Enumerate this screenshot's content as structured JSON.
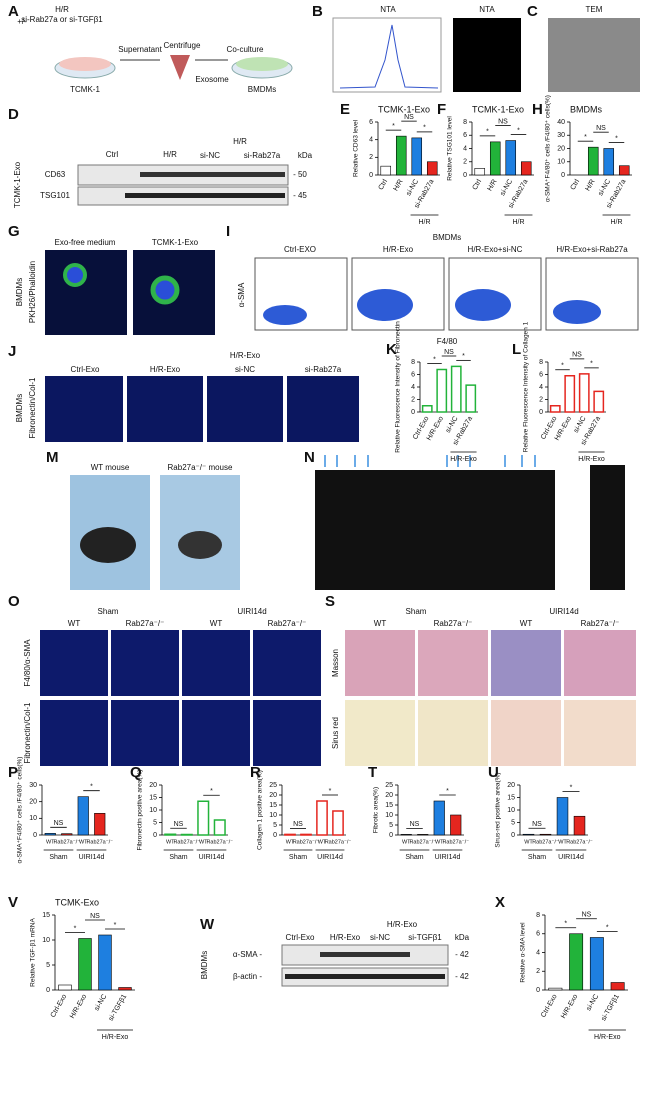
{
  "panels": {
    "A": {
      "letter": "A",
      "texts": [
        "+/-",
        "H/R",
        "si-Rab27a or si-TGFβ1",
        "Supernatant",
        "Centrifuge",
        "Co-culture",
        "Exosome",
        "TCMK-1",
        "BMDMs"
      ]
    },
    "B": {
      "letter": "B",
      "texts": [
        "NTA",
        "NTA"
      ]
    },
    "C": {
      "letter": "C",
      "texts": [
        "TEM"
      ]
    },
    "D": {
      "letter": "D",
      "texts": [
        "Ctrl",
        "H/R",
        "H/R",
        "si-NC",
        "si-Rab27a",
        "kDa",
        "CD63",
        "TSG101",
        "- 50",
        "- 45",
        "TCMK-1-Exo"
      ]
    },
    "G": {
      "letter": "G",
      "texts": [
        "Exo-free medium",
        "TCMK-1-Exo",
        "BMDMs",
        "PKH26/Phalloidin"
      ]
    },
    "I": {
      "letter": "I",
      "texts": [
        "BMDMs",
        "Ctrl-EXO",
        "H/R-Exo",
        "H/R-Exo+si-NC",
        "H/R-Exo+si-Rab27a",
        "α-SMA",
        "F4/80"
      ]
    },
    "J": {
      "letter": "J",
      "texts": [
        "Ctrl-Exo",
        "H/R-Exo",
        "H/R-Exo",
        "si-NC",
        "si-Rab27a",
        "BMDMs",
        "Fibronectin/Col-1"
      ]
    },
    "M": {
      "letter": "M",
      "texts": [
        "WT mouse",
        "Rab27a⁻/⁻ mouse"
      ]
    },
    "N": {
      "letter": "N"
    },
    "O": {
      "letter": "O",
      "texts": [
        "Sham",
        "UIRI14d",
        "WT",
        "Rab27a⁻/⁻",
        "WT",
        "Rab27a⁻/⁻",
        "F4/80/α-SMA",
        "Fibronectin/Col-1"
      ]
    },
    "S": {
      "letter": "S",
      "texts": [
        "Sham",
        "UIRI14d",
        "WT",
        "Rab27a⁻/⁻",
        "WT",
        "Rab27a⁻/⁻",
        "Masson",
        "Sirus red"
      ]
    },
    "W": {
      "letter": "W",
      "texts": [
        "Ctrl-Exo",
        "H/R-Exo",
        "H/R-Exo",
        "si-NC",
        "si-TGFβ1",
        "kDa",
        "α-SMA -",
        "β-actin -",
        "- 42",
        "- 42",
        "BMDMs"
      ]
    }
  },
  "chart_data": [
    {
      "type": "bar",
      "panel": "E",
      "title": "TCMK-1-Exo",
      "y_label": "Relative CD63 level",
      "categories": [
        "Ctrl",
        "H/R",
        "si-NC",
        "si-Rab27a"
      ],
      "values": [
        1,
        4.4,
        4.2,
        1.5
      ],
      "colors": [
        "#ffffff",
        "#22b33a",
        "#1e7fe0",
        "#e5261f"
      ],
      "fill": "solid",
      "ylim": [
        0,
        6
      ],
      "yticks": [
        0,
        2,
        4,
        6
      ],
      "group_labels": [
        "H/R"
      ],
      "annotations": [
        "*",
        "NS",
        "*"
      ]
    },
    {
      "type": "bar",
      "panel": "F",
      "title": "TCMK-1-Exo",
      "y_label": "Relative TSG101 level",
      "categories": [
        "Ctrl",
        "H/R",
        "si-NC",
        "si-Rab27a"
      ],
      "values": [
        1,
        5,
        5.2,
        2
      ],
      "colors": [
        "#ffffff",
        "#22b33a",
        "#1e7fe0",
        "#e5261f"
      ],
      "fill": "solid",
      "ylim": [
        0,
        8
      ],
      "yticks": [
        0,
        2,
        4,
        6,
        8
      ],
      "group_labels": [
        "H/R"
      ],
      "annotations": [
        "*",
        "NS",
        "*"
      ]
    },
    {
      "type": "bar",
      "panel": "H",
      "title": "BMDMs",
      "y_label": "α-SMA⁺F4/80⁺ cells /F4/80⁺ cells(%)",
      "categories": [
        "Ctrl",
        "H/R",
        "si-NC",
        "si-Rab27a"
      ],
      "values": [
        0,
        21,
        20,
        7
      ],
      "colors": [
        "#ffffff",
        "#22b33a",
        "#1e7fe0",
        "#e5261f"
      ],
      "fill": "solid",
      "ylim": [
        0,
        40
      ],
      "yticks": [
        0,
        10,
        20,
        30,
        40
      ],
      "group_labels": [
        "H/R"
      ],
      "annotations": [
        "*",
        "NS",
        "*"
      ]
    },
    {
      "type": "bar",
      "panel": "K",
      "y_label": "Relative Fluorescence Intensity of Fibronectin",
      "categories": [
        "Ctrl-Exo",
        "H/R-Exo",
        "si-NC",
        "si-Rab27a"
      ],
      "values": [
        1,
        6.8,
        7.3,
        4.3
      ],
      "colors": [
        "#22b33a",
        "#22b33a",
        "#22b33a",
        "#22b33a"
      ],
      "fill": "outline",
      "ylim": [
        0,
        8
      ],
      "yticks": [
        0,
        2,
        4,
        6,
        8
      ],
      "group_labels": [
        "H/R-Exo"
      ],
      "annotations": [
        "*",
        "NS",
        "*"
      ]
    },
    {
      "type": "bar",
      "panel": "L",
      "y_label": "Relative Fluorescence Intensity of Collagen 1",
      "categories": [
        "Ctrl-Exo",
        "H/R-Exo",
        "si-NC",
        "si-Rab27a"
      ],
      "values": [
        1,
        5.8,
        6.1,
        3.3
      ],
      "colors": [
        "#e5261f",
        "#e5261f",
        "#e5261f",
        "#e5261f"
      ],
      "fill": "outline",
      "ylim": [
        0,
        8
      ],
      "yticks": [
        0,
        2,
        4,
        6,
        8
      ],
      "group_labels": [
        "H/R-Exo"
      ],
      "annotations": [
        "*",
        "NS",
        "*"
      ]
    },
    {
      "type": "bar",
      "panel": "P",
      "y_label": "α-SMA⁺F4/80⁺ cells /F4/80⁺ cells(%)",
      "categories": [
        "WT",
        "Rab27a⁻/⁻",
        "WT",
        "Rab27a⁻/⁻"
      ],
      "values": [
        1,
        0.8,
        23,
        13
      ],
      "colors": [
        "#1e7fe0",
        "#e5261f",
        "#1e7fe0",
        "#e5261f"
      ],
      "fill": "solid",
      "ylim": [
        0,
        30
      ],
      "yticks": [
        0,
        10,
        20,
        30
      ],
      "group_labels": [
        "Sham",
        "UIRI14d"
      ],
      "annotations": [
        "NS",
        "*"
      ]
    },
    {
      "type": "bar",
      "panel": "Q",
      "y_label": "Fibronectin positive area(%)",
      "categories": [
        "WT",
        "Rab27a⁻/⁻",
        "WT",
        "Rab27a⁻/⁻"
      ],
      "values": [
        0.3,
        0.2,
        13.5,
        6
      ],
      "colors": [
        "#22b33a",
        "#22b33a",
        "#22b33a",
        "#22b33a"
      ],
      "fill": "outline",
      "ylim": [
        0,
        20
      ],
      "yticks": [
        0,
        5,
        10,
        15,
        20
      ],
      "group_labels": [
        "Sham",
        "UIRI14d"
      ],
      "annotations": [
        "NS",
        "*"
      ]
    },
    {
      "type": "bar",
      "panel": "R",
      "y_label": "Collagen 1 positive area(%)",
      "categories": [
        "WT",
        "Rab27a⁻/⁻",
        "WT",
        "Rab27a⁻/⁻"
      ],
      "values": [
        0.3,
        0.3,
        17,
        12
      ],
      "colors": [
        "#e5261f",
        "#e5261f",
        "#e5261f",
        "#e5261f"
      ],
      "fill": "outline",
      "ylim": [
        0,
        25
      ],
      "yticks": [
        0,
        5,
        10,
        15,
        20,
        25
      ],
      "group_labels": [
        "Sham",
        "UIRI14d"
      ],
      "annotations": [
        "NS",
        "*"
      ]
    },
    {
      "type": "bar",
      "panel": "T",
      "y_label": "Fibrotic area(%)",
      "categories": [
        "WT",
        "Rab27a⁻/⁻",
        "WT",
        "Rab27a⁻/⁻"
      ],
      "values": [
        0.3,
        0.3,
        17,
        10
      ],
      "colors": [
        "#1e7fe0",
        "#e5261f",
        "#1e7fe0",
        "#e5261f"
      ],
      "fill": "solid",
      "ylim": [
        0,
        25
      ],
      "yticks": [
        0,
        5,
        10,
        15,
        20,
        25
      ],
      "group_labels": [
        "Sham",
        "UIRI14d"
      ],
      "annotations": [
        "NS",
        "*"
      ]
    },
    {
      "type": "bar",
      "panel": "U",
      "y_label": "Sirus-red positive area(%)",
      "categories": [
        "WT",
        "Rab27a⁻/⁻",
        "WT",
        "Rab27a⁻/⁻"
      ],
      "values": [
        0.3,
        0.3,
        15,
        7.5
      ],
      "colors": [
        "#1e7fe0",
        "#e5261f",
        "#1e7fe0",
        "#e5261f"
      ],
      "fill": "solid",
      "ylim": [
        0,
        20
      ],
      "yticks": [
        0,
        5,
        10,
        15,
        20
      ],
      "group_labels": [
        "Sham",
        "UIRI14d"
      ],
      "annotations": [
        "NS",
        "*"
      ]
    },
    {
      "type": "bar",
      "panel": "V",
      "title": "TCMK-Exo",
      "y_label": "Relative TGF-β1 mRNA",
      "categories": [
        "Ctrl-Exo",
        "H/R-Exo",
        "si-NC",
        "si-TGFβ1"
      ],
      "values": [
        1,
        10.3,
        11,
        0.5
      ],
      "colors": [
        "#ffffff",
        "#22b33a",
        "#1e7fe0",
        "#e5261f"
      ],
      "fill": "solid",
      "ylim": [
        0,
        15
      ],
      "yticks": [
        0,
        5,
        10,
        15
      ],
      "group_labels": [
        "H/R-Exo"
      ],
      "annotations": [
        "*",
        "NS",
        "*"
      ]
    },
    {
      "type": "bar",
      "panel": "X",
      "y_label": "Relative α-SMA level",
      "categories": [
        "Ctrl-Exo",
        "H/R-Exo",
        "si-NC",
        "si-TGFβ1"
      ],
      "values": [
        0.2,
        6,
        5.6,
        0.8
      ],
      "colors": [
        "#ffffff",
        "#22b33a",
        "#1e7fe0",
        "#e5261f"
      ],
      "fill": "solid",
      "ylim": [
        0,
        8
      ],
      "yticks": [
        0,
        2,
        4,
        6,
        8
      ],
      "group_labels": [
        "H/R-Exo"
      ],
      "annotations": [
        "*",
        "NS",
        "*"
      ]
    }
  ]
}
